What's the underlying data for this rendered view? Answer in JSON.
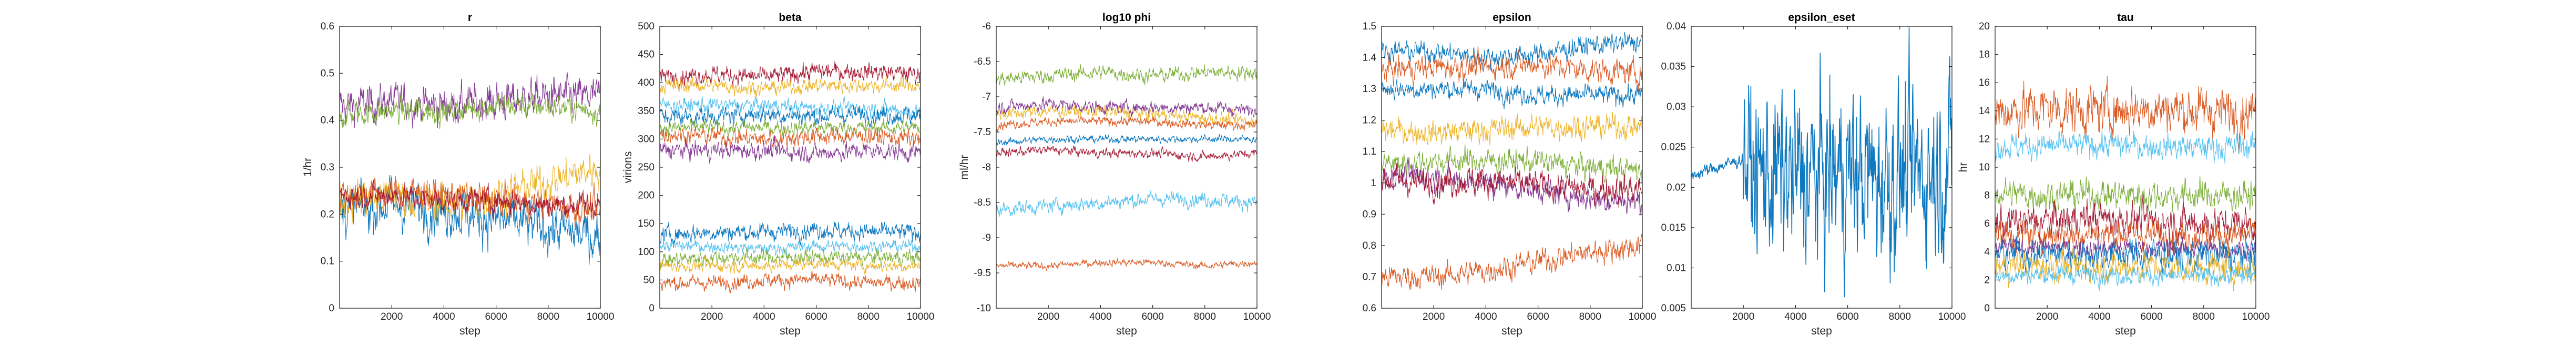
{
  "figure": {
    "description_colors": {
      "blue": "#0072BD",
      "orange": "#D95319",
      "yellow": "#EDB120",
      "purple": "#7E2F8E",
      "green": "#77AC30",
      "lightblue": "#4DBEEE",
      "darkred": "#A2142F"
    }
  },
  "chart_data": [
    {
      "type": "line",
      "title": "r",
      "xlabel": "step",
      "ylabel": "1/hr",
      "xlim": [
        0,
        10000
      ],
      "ylim": [
        0,
        0.6
      ],
      "xticks": [
        2000,
        4000,
        6000,
        8000,
        10000
      ],
      "yticks": [
        0,
        0.1,
        0.2,
        0.3,
        0.4,
        0.5,
        0.6
      ],
      "series": [
        {
          "color": "#7E2F8E",
          "x": [
            0,
            2000,
            4000,
            6000,
            8000,
            10000
          ],
          "values": [
            0.43,
            0.44,
            0.43,
            0.44,
            0.45,
            0.45
          ],
          "spread": 0.03
        },
        {
          "color": "#77AC30",
          "x": [
            0,
            2000,
            4000,
            6000,
            8000,
            10000
          ],
          "values": [
            0.41,
            0.42,
            0.42,
            0.43,
            0.43,
            0.42
          ],
          "spread": 0.02
        },
        {
          "color": "#0072BD",
          "x": [
            0,
            2000,
            4000,
            6000,
            8000,
            10000
          ],
          "values": [
            0.21,
            0.22,
            0.21,
            0.19,
            0.17,
            0.15
          ],
          "spread": 0.04
        },
        {
          "color": "#EDB120",
          "x": [
            0,
            2000,
            4000,
            6000,
            8000,
            10000
          ],
          "values": [
            0.23,
            0.24,
            0.22,
            0.24,
            0.27,
            0.3
          ],
          "spread": 0.03
        },
        {
          "color": "#D95319",
          "x": [
            0,
            2000,
            4000,
            6000,
            8000,
            10000
          ],
          "values": [
            0.24,
            0.25,
            0.24,
            0.23,
            0.22,
            0.21
          ],
          "spread": 0.025
        },
        {
          "color": "#A2142F",
          "x": [
            0,
            2000,
            4000,
            6000,
            8000,
            10000
          ],
          "values": [
            0.24,
            0.24,
            0.23,
            0.23,
            0.22,
            0.22
          ],
          "spread": 0.02
        }
      ]
    },
    {
      "type": "line",
      "title": "beta",
      "xlabel": "step",
      "ylabel": "virions",
      "xlim": [
        0,
        10000
      ],
      "ylim": [
        0,
        500
      ],
      "xticks": [
        2000,
        4000,
        6000,
        8000,
        10000
      ],
      "yticks": [
        0,
        50,
        100,
        150,
        200,
        250,
        300,
        350,
        400,
        450,
        500
      ],
      "series": [
        {
          "color": "#A2142F",
          "x": [
            0,
            2000,
            4000,
            6000,
            8000,
            10000
          ],
          "values": [
            410,
            415,
            410,
            420,
            420,
            415
          ],
          "spread": 12
        },
        {
          "color": "#EDB120",
          "x": [
            0,
            2000,
            4000,
            6000,
            8000,
            10000
          ],
          "values": [
            395,
            395,
            390,
            395,
            395,
            395
          ],
          "spread": 10
        },
        {
          "color": "#4DBEEE",
          "x": [
            0,
            2000,
            4000,
            6000,
            8000,
            10000
          ],
          "values": [
            360,
            360,
            360,
            355,
            355,
            350
          ],
          "spread": 10
        },
        {
          "color": "#0072BD",
          "x": [
            0,
            2000,
            4000,
            6000,
            8000,
            10000
          ],
          "values": [
            340,
            340,
            345,
            340,
            345,
            340
          ],
          "spread": 12
        },
        {
          "color": "#77AC30",
          "x": [
            0,
            2000,
            4000,
            6000,
            8000,
            10000
          ],
          "values": [
            320,
            320,
            320,
            320,
            320,
            320
          ],
          "spread": 10
        },
        {
          "color": "#D95319",
          "x": [
            0,
            2000,
            4000,
            6000,
            8000,
            10000
          ],
          "values": [
            310,
            305,
            300,
            305,
            305,
            300
          ],
          "spread": 12
        },
        {
          "color": "#7E2F8E",
          "x": [
            0,
            2000,
            4000,
            6000,
            8000,
            10000
          ],
          "values": [
            280,
            280,
            280,
            275,
            280,
            275
          ],
          "spread": 12
        },
        {
          "color": "#0072BD",
          "x": [
            0,
            2000,
            4000,
            6000,
            8000,
            10000
          ],
          "values": [
            130,
            135,
            135,
            140,
            135,
            135
          ],
          "spread": 12
        },
        {
          "color": "#4DBEEE",
          "x": [
            0,
            2000,
            4000,
            6000,
            8000,
            10000
          ],
          "values": [
            110,
            110,
            105,
            110,
            110,
            110
          ],
          "spread": 8
        },
        {
          "color": "#77AC30",
          "x": [
            0,
            2000,
            4000,
            6000,
            8000,
            10000
          ],
          "values": [
            85,
            90,
            90,
            90,
            90,
            90
          ],
          "spread": 10
        },
        {
          "color": "#EDB120",
          "x": [
            0,
            2000,
            4000,
            6000,
            8000,
            10000
          ],
          "values": [
            75,
            75,
            75,
            80,
            75,
            75
          ],
          "spread": 8
        },
        {
          "color": "#D95319",
          "x": [
            0,
            2000,
            4000,
            6000,
            8000,
            10000
          ],
          "values": [
            45,
            45,
            50,
            50,
            45,
            45
          ],
          "spread": 10
        }
      ]
    },
    {
      "type": "line",
      "title": "log10 phi",
      "xlabel": "step",
      "ylabel": "ml/hr",
      "xlim": [
        0,
        10000
      ],
      "ylim": [
        -10,
        -6
      ],
      "xticks": [
        2000,
        4000,
        6000,
        8000,
        10000
      ],
      "yticks": [
        -10,
        -9.5,
        -9,
        -8.5,
        -8,
        -7.5,
        -7,
        -6.5,
        -6
      ],
      "series": [
        {
          "color": "#77AC30",
          "x": [
            0,
            2000,
            4000,
            6000,
            8000,
            10000
          ],
          "values": [
            -6.75,
            -6.7,
            -6.65,
            -6.7,
            -6.65,
            -6.65
          ],
          "spread": 0.08
        },
        {
          "color": "#EDB120",
          "x": [
            0,
            2000,
            4000,
            6000,
            8000,
            10000
          ],
          "values": [
            -7.25,
            -7.2,
            -7.2,
            -7.25,
            -7.3,
            -7.35
          ],
          "spread": 0.07
        },
        {
          "color": "#7E2F8E",
          "x": [
            0,
            2000,
            4000,
            6000,
            8000,
            10000
          ],
          "values": [
            -7.15,
            -7.1,
            -7.15,
            -7.15,
            -7.15,
            -7.2
          ],
          "spread": 0.07
        },
        {
          "color": "#D95319",
          "x": [
            0,
            2000,
            4000,
            6000,
            8000,
            10000
          ],
          "values": [
            -7.4,
            -7.35,
            -7.35,
            -7.35,
            -7.4,
            -7.4
          ],
          "spread": 0.05
        },
        {
          "color": "#0072BD",
          "x": [
            0,
            2000,
            4000,
            6000,
            8000,
            10000
          ],
          "values": [
            -7.65,
            -7.6,
            -7.6,
            -7.6,
            -7.6,
            -7.6
          ],
          "spread": 0.04
        },
        {
          "color": "#A2142F",
          "x": [
            0,
            2000,
            4000,
            6000,
            8000,
            10000
          ],
          "values": [
            -7.8,
            -7.75,
            -7.8,
            -7.8,
            -7.85,
            -7.8
          ],
          "spread": 0.05
        },
        {
          "color": "#4DBEEE",
          "x": [
            0,
            2000,
            4000,
            6000,
            8000,
            10000
          ],
          "values": [
            -8.6,
            -8.55,
            -8.5,
            -8.45,
            -8.45,
            -8.5
          ],
          "spread": 0.08
        },
        {
          "color": "#D95319",
          "x": [
            0,
            2000,
            4000,
            6000,
            8000,
            10000
          ],
          "values": [
            -9.4,
            -9.4,
            -9.35,
            -9.35,
            -9.4,
            -9.35
          ],
          "spread": 0.04
        }
      ]
    },
    {
      "type": "line",
      "title": "epsilon",
      "xlabel": "step",
      "ylabel": "",
      "xlim": [
        0,
        10000
      ],
      "ylim": [
        0.6,
        1.5
      ],
      "xticks": [
        2000,
        4000,
        6000,
        8000,
        10000
      ],
      "yticks": [
        0.6,
        0.7,
        0.8,
        0.9,
        1,
        1.1,
        1.2,
        1.3,
        1.4,
        1.5
      ],
      "series": [
        {
          "color": "#0072BD",
          "x": [
            0,
            2000,
            4000,
            6000,
            8000,
            10000
          ],
          "values": [
            1.42,
            1.42,
            1.4,
            1.41,
            1.44,
            1.45
          ],
          "spread": 0.025
        },
        {
          "color": "#D95319",
          "x": [
            0,
            2000,
            4000,
            6000,
            8000,
            10000
          ],
          "values": [
            1.36,
            1.37,
            1.37,
            1.38,
            1.36,
            1.35
          ],
          "spread": 0.03
        },
        {
          "color": "#0072BD",
          "x": [
            0,
            2000,
            4000,
            6000,
            8000,
            10000
          ],
          "values": [
            1.3,
            1.3,
            1.3,
            1.28,
            1.28,
            1.28
          ],
          "spread": 0.025
        },
        {
          "color": "#EDB120",
          "x": [
            0,
            2000,
            4000,
            6000,
            8000,
            10000
          ],
          "values": [
            1.17,
            1.16,
            1.17,
            1.18,
            1.18,
            1.18
          ],
          "spread": 0.03
        },
        {
          "color": "#77AC30",
          "x": [
            0,
            2000,
            4000,
            6000,
            8000,
            10000
          ],
          "values": [
            1.06,
            1.07,
            1.07,
            1.07,
            1.05,
            1.04
          ],
          "spread": 0.03
        },
        {
          "color": "#7E2F8E",
          "x": [
            0,
            2000,
            4000,
            6000,
            8000,
            10000
          ],
          "values": [
            1.02,
            1.02,
            1.0,
            0.98,
            0.95,
            0.94
          ],
          "spread": 0.03
        },
        {
          "color": "#A2142F",
          "x": [
            0,
            2000,
            4000,
            6000,
            8000,
            10000
          ],
          "values": [
            1.01,
            1.0,
            1.01,
            0.99,
            0.98,
            0.98
          ],
          "spread": 0.035
        },
        {
          "color": "#D95319",
          "x": [
            0,
            2000,
            4000,
            6000,
            8000,
            10000
          ],
          "values": [
            0.7,
            0.7,
            0.72,
            0.75,
            0.78,
            0.8
          ],
          "spread": 0.03
        }
      ]
    },
    {
      "type": "line",
      "title": "epsilon_eset",
      "xlabel": "step",
      "ylabel": "",
      "xlim": [
        0,
        10000
      ],
      "ylim": [
        0.005,
        0.04
      ],
      "xticks": [
        2000,
        4000,
        6000,
        8000,
        10000
      ],
      "yticks": [
        0.005,
        0.01,
        0.015,
        0.02,
        0.025,
        0.03,
        0.035,
        0.04
      ],
      "series": [
        {
          "color": "#0072BD",
          "x": [
            0,
            500,
            1000,
            1500,
            2000,
            2500,
            3000,
            4000,
            5000,
            6000,
            7000,
            8000,
            9000,
            10000
          ],
          "values": [
            0.0215,
            0.022,
            0.0225,
            0.023,
            0.0235,
            0.021,
            0.022,
            0.021,
            0.0215,
            0.022,
            0.021,
            0.0215,
            0.022,
            0.023
          ],
          "spread": 0.005
        }
      ]
    },
    {
      "type": "line",
      "title": "tau",
      "xlabel": "step",
      "ylabel": "hr",
      "xlim": [
        0,
        10000
      ],
      "ylim": [
        0,
        20
      ],
      "xticks": [
        2000,
        4000,
        6000,
        8000,
        10000
      ],
      "yticks": [
        0,
        2,
        4,
        6,
        8,
        10,
        12,
        14,
        16,
        18,
        20
      ],
      "series": [
        {
          "color": "#D95319",
          "x": [
            0,
            2000,
            4000,
            6000,
            8000,
            10000
          ],
          "values": [
            14,
            14.2,
            14,
            14.2,
            14,
            14
          ],
          "spread": 1.3
        },
        {
          "color": "#4DBEEE",
          "x": [
            0,
            2000,
            4000,
            6000,
            8000,
            10000
          ],
          "values": [
            11.5,
            11.5,
            11.6,
            11.5,
            11.4,
            11.5
          ],
          "spread": 0.7
        },
        {
          "color": "#77AC30",
          "x": [
            0,
            2000,
            4000,
            6000,
            8000,
            10000
          ],
          "values": [
            8.2,
            8,
            8.1,
            8,
            8,
            8
          ],
          "spread": 0.8
        },
        {
          "color": "#A2142F",
          "x": [
            0,
            2000,
            4000,
            6000,
            8000,
            10000
          ],
          "values": [
            6,
            6.2,
            6.4,
            6.2,
            6,
            6
          ],
          "spread": 0.9
        },
        {
          "color": "#D95319",
          "x": [
            0,
            2000,
            4000,
            6000,
            8000,
            10000
          ],
          "values": [
            5.2,
            5.2,
            5.3,
            5.2,
            5.1,
            5.2
          ],
          "spread": 0.8
        },
        {
          "color": "#7E2F8E",
          "x": [
            0,
            2000,
            4000,
            6000,
            8000,
            10000
          ],
          "values": [
            4.3,
            4.3,
            4.2,
            4.3,
            4.2,
            4.2
          ],
          "spread": 0.5
        },
        {
          "color": "#0072BD",
          "x": [
            0,
            2000,
            4000,
            6000,
            8000,
            10000
          ],
          "values": [
            3.8,
            3.9,
            3.8,
            3.8,
            3.7,
            3.8
          ],
          "spread": 0.9
        },
        {
          "color": "#EDB120",
          "x": [
            0,
            2000,
            4000,
            6000,
            8000,
            10000
          ],
          "values": [
            3,
            3,
            2.9,
            3,
            2.8,
            2.8
          ],
          "spread": 0.8
        },
        {
          "color": "#4DBEEE",
          "x": [
            0,
            2000,
            4000,
            6000,
            8000,
            10000
          ],
          "values": [
            2.3,
            2.4,
            2.4,
            2.3,
            2.3,
            2.3
          ],
          "spread": 0.5
        }
      ]
    }
  ]
}
